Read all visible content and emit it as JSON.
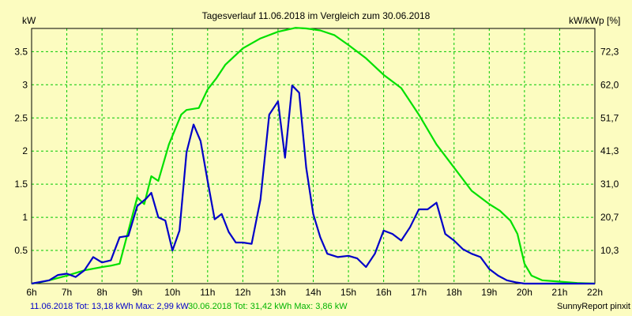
{
  "chart_data": {
    "type": "line",
    "title": "Tagesverlauf 11.06.2018 im Vergleich zum 30.06.2018",
    "ylabel_left": "kW",
    "ylabel_right": "kW/kWp [%]",
    "x_ticks": [
      "6h",
      "7h",
      "8h",
      "9h",
      "10h",
      "11h",
      "12h",
      "13h",
      "14h",
      "15h",
      "16h",
      "17h",
      "18h",
      "19h",
      "20h",
      "21h",
      "22h"
    ],
    "y_ticks_left": [
      "0.5",
      "1",
      "1.5",
      "2",
      "2.5",
      "3",
      "3.5"
    ],
    "y_ticks_right": [
      "10,3",
      "20,7",
      "31,0",
      "41,3",
      "51,7",
      "62,0",
      "72,3"
    ],
    "xlim": [
      6,
      22
    ],
    "ylim": [
      0,
      3.85
    ],
    "grid": true,
    "series": [
      {
        "color": "#0000c8",
        "x": [
          6.0,
          6.5,
          6.75,
          7.0,
          7.25,
          7.5,
          7.75,
          8.0,
          8.25,
          8.5,
          8.75,
          9.0,
          9.25,
          9.4,
          9.6,
          9.8,
          10.0,
          10.2,
          10.4,
          10.6,
          10.8,
          11.0,
          11.2,
          11.4,
          11.6,
          11.8,
          12.0,
          12.25,
          12.5,
          12.75,
          13.0,
          13.2,
          13.4,
          13.6,
          13.8,
          14.0,
          14.2,
          14.4,
          14.7,
          15.0,
          15.25,
          15.5,
          15.75,
          16.0,
          16.25,
          16.5,
          16.75,
          17.0,
          17.25,
          17.5,
          17.75,
          18.0,
          18.25,
          18.5,
          18.75,
          19.0,
          19.25,
          19.5,
          19.75,
          20.0,
          20.25,
          20.5,
          21.0,
          21.5,
          22.0
        ],
        "y": [
          0.0,
          0.05,
          0.13,
          0.15,
          0.1,
          0.2,
          0.4,
          0.32,
          0.35,
          0.7,
          0.72,
          1.17,
          1.28,
          1.37,
          1.0,
          0.95,
          0.5,
          0.8,
          1.98,
          2.4,
          2.15,
          1.55,
          0.97,
          1.05,
          0.78,
          0.62,
          0.62,
          0.6,
          1.27,
          2.55,
          2.75,
          1.9,
          2.99,
          2.88,
          1.75,
          1.05,
          0.7,
          0.45,
          0.4,
          0.42,
          0.38,
          0.25,
          0.45,
          0.8,
          0.75,
          0.65,
          0.85,
          1.12,
          1.12,
          1.22,
          0.75,
          0.65,
          0.52,
          0.45,
          0.4,
          0.22,
          0.12,
          0.05,
          0.02,
          0.0,
          0.0,
          0.0,
          0.0,
          0.0,
          0.0
        ]
      },
      {
        "color": "#00e000",
        "x": [
          6.0,
          6.25,
          6.5,
          7.0,
          7.5,
          8.0,
          8.25,
          8.5,
          9.0,
          9.2,
          9.4,
          9.6,
          9.9,
          10.25,
          10.4,
          10.75,
          11.0,
          11.25,
          11.5,
          12.0,
          12.5,
          13.0,
          13.5,
          13.8,
          14.2,
          14.6,
          15.0,
          15.5,
          16.0,
          16.5,
          17.0,
          17.5,
          18.0,
          18.5,
          19.0,
          19.3,
          19.6,
          19.8,
          20.0,
          20.2,
          20.5,
          21.0,
          21.5,
          22.0
        ],
        "y": [
          0.0,
          0.02,
          0.05,
          0.12,
          0.2,
          0.25,
          0.27,
          0.3,
          1.3,
          1.2,
          1.62,
          1.55,
          2.1,
          2.55,
          2.62,
          2.65,
          2.93,
          3.1,
          3.3,
          3.55,
          3.7,
          3.8,
          3.86,
          3.85,
          3.82,
          3.75,
          3.6,
          3.4,
          3.15,
          2.95,
          2.55,
          2.1,
          1.75,
          1.4,
          1.2,
          1.1,
          0.95,
          0.75,
          0.3,
          0.12,
          0.05,
          0.03,
          0.01,
          0.0
        ]
      }
    ]
  },
  "footer": {
    "series1_summary": "11.06.2018 Tot: 13,18 kWh Max: 2,99 kW",
    "series2_summary": "30.06.2018 Tot: 31,42 kWh Max: 3,86 kW",
    "credit": "SunnyReport pinxit"
  }
}
